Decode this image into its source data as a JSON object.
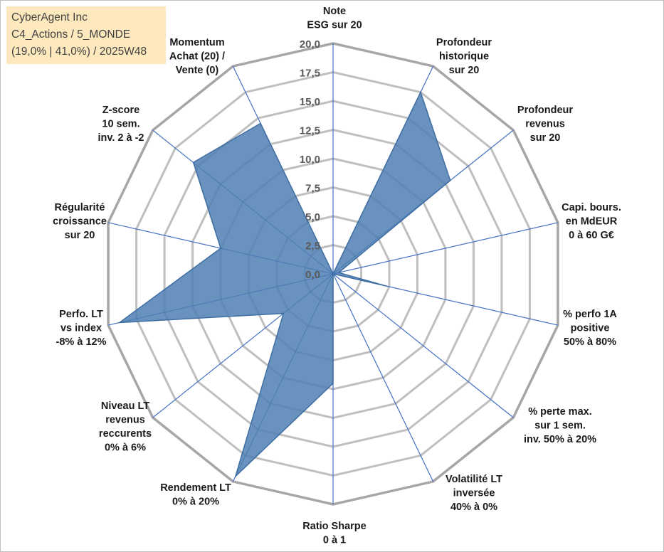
{
  "info_box": {
    "company": "CyberAgent Inc",
    "portfolio": "C4_Actions / 5_MONDE",
    "stats": "(19,0% | 41,0%) / 2025W48"
  },
  "colors": {
    "fill": "#4f7fb3",
    "fill_stroke": "#3f6ea3",
    "spoke": "#4472c4",
    "grid": "#bfbfbf",
    "outer_ring": "#a6a6a6",
    "info_bg": "#fde9bd"
  },
  "chart_data": {
    "type": "radar",
    "r_min": 0,
    "r_max": 20,
    "r_step": 2.5,
    "tick_labels": [
      "0,0",
      "2,5",
      "5,0",
      "7,5",
      "10,0",
      "12,5",
      "15,0",
      "17,5",
      "20,0"
    ],
    "axes": [
      {
        "label": [
          "Note",
          "ESG sur 20"
        ],
        "anchor": "middle"
      },
      {
        "label": [
          "Profondeur",
          "historique",
          "sur 20"
        ],
        "anchor": "middle"
      },
      {
        "label": [
          "Profondeur",
          "revenus",
          "sur 20"
        ],
        "anchor": "middle"
      },
      {
        "label": [
          "Capi. bours.",
          "en MdEUR",
          "0 à 60 G€"
        ],
        "anchor": "middle"
      },
      {
        "label": [
          "% perfo 1A",
          "positive",
          "50% à 80%"
        ],
        "anchor": "middle"
      },
      {
        "label": [
          "% perte max.",
          "sur 1 sem.",
          "inv. 50% à 20%"
        ],
        "anchor": "middle"
      },
      {
        "label": [
          "Volatilité LT",
          "inversée",
          "40% à 0%"
        ],
        "anchor": "middle"
      },
      {
        "label": [
          "Ratio Sharpe",
          "0 à 1"
        ],
        "anchor": "middle"
      },
      {
        "label": [
          "Rendement LT",
          "0% à 20%"
        ],
        "anchor": "middle"
      },
      {
        "label": [
          "Niveau LT",
          "revenus",
          "reccurents",
          "0% à 6%"
        ],
        "anchor": "middle"
      },
      {
        "label": [
          "Perfo. LT",
          "vs index",
          "-8% à 12%"
        ],
        "anchor": "middle"
      },
      {
        "label": [
          "Régularité",
          "croissance",
          "sur 20"
        ],
        "anchor": "middle"
      },
      {
        "label": [
          "Z-score",
          "10 sem.",
          "inv. 2 à -2"
        ],
        "anchor": "middle"
      },
      {
        "label": [
          "Momentum",
          "Achat (20) /",
          "Vente (0)"
        ],
        "anchor": "middle"
      }
    ],
    "series": [
      {
        "name": "CyberAgent Inc",
        "values": [
          0,
          17.5,
          13,
          0.5,
          4.8,
          0,
          0,
          9.5,
          19.5,
          5.5,
          19,
          10,
          15.5,
          14.5
        ]
      }
    ]
  }
}
